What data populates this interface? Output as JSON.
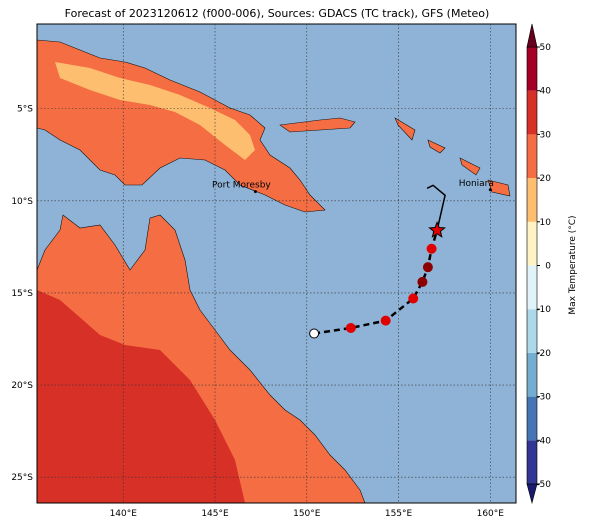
{
  "title": "Forecast of 2023120612 (f000-006), Sources: GDACS (TC track), GFS (Meteo)",
  "map": {
    "xlim": [
      135.3,
      161.4
    ],
    "ylim": [
      -26.4,
      -0.4
    ],
    "lon_ticks": [
      {
        "value": 140,
        "label": "140°E"
      },
      {
        "value": 145,
        "label": "145°E"
      },
      {
        "value": 150,
        "label": "150°E"
      },
      {
        "value": 155,
        "label": "155°E"
      },
      {
        "value": 160,
        "label": "160°E"
      }
    ],
    "lat_ticks": [
      {
        "value": -5,
        "label": "5°S"
      },
      {
        "value": -10,
        "label": "10°S"
      },
      {
        "value": -15,
        "label": "15°S"
      },
      {
        "value": -20,
        "label": "20°S"
      },
      {
        "value": -25,
        "label": "25°S"
      }
    ],
    "places": [
      {
        "name": "Port Moresby",
        "lon": 147.2,
        "lat": -9.5
      },
      {
        "name": "Honiara",
        "lon": 160.0,
        "lat": -9.4
      }
    ],
    "track": {
      "lon": [
        150.4,
        152.4,
        154.3,
        155.8,
        156.3,
        156.6,
        156.8,
        157.1
      ],
      "lat": [
        -17.2,
        -16.9,
        -16.5,
        -15.3,
        -14.4,
        -13.6,
        -12.6,
        -11.6
      ],
      "colors": [
        "#ffffff",
        "#e00000",
        "#e00000",
        "#e00000",
        "#8b0000",
        "#8b0000",
        "#e00000",
        "#e00000"
      ]
    }
  },
  "colorbar": {
    "label": "Max Temperature (°C)",
    "ticks": [
      -50,
      -40,
      -30,
      -20,
      -10,
      0,
      10,
      20,
      30,
      40,
      50
    ],
    "colors": [
      "#313695",
      "#4575b4",
      "#74add1",
      "#abd9e9",
      "#e0f3f8",
      "#fff3c4",
      "#fdbf6f",
      "#f46d43",
      "#d73027",
      "#a50026"
    ],
    "extend_colors": [
      "#191970",
      "#67001f"
    ]
  }
}
